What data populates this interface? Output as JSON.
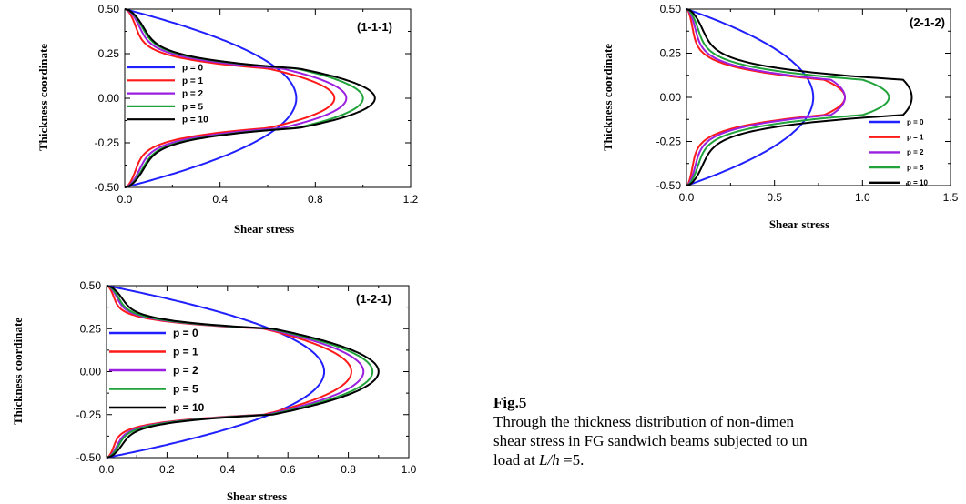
{
  "figure": {
    "caption_label": "Fig.5",
    "caption_line1": "Through the thickness distribution of non-dimen",
    "caption_line2": "shear stress in FG sandwich beams subjected to un",
    "caption_line3_prefix": "load at ",
    "caption_line3_italic": "L/h",
    "caption_line3_suffix": " =5."
  },
  "colors": {
    "p = 0": "#2020ff",
    "p = 1": "#ff1a1a",
    "p = 2": "#9b1fe0",
    "p = 5": "#1fa33a",
    "p = 10": "#000000"
  },
  "chart_data": [
    {
      "type": "line",
      "panel_label": "(1-1-1)",
      "xlabel": "Shear stress",
      "ylabel": "Thickness coordinate",
      "xlim": [
        0,
        1.2
      ],
      "ylim": [
        -0.5,
        0.5
      ],
      "xticks": [
        "0.0",
        "0.4",
        "0.8",
        "1.2"
      ],
      "yticks": [
        "-0.50",
        "-0.25",
        "0.00",
        "0.25",
        "0.50"
      ],
      "legend_position": "left",
      "series": [
        {
          "name": "p = 0",
          "core": [
            -0.5,
            0.5
          ],
          "peak": 0.72,
          "skin": [
            0.0,
            0.0
          ]
        },
        {
          "name": "p = 1",
          "core": [
            -0.1667,
            0.1667
          ],
          "peak": 0.88,
          "skin": [
            0.09,
            0.6
          ]
        },
        {
          "name": "p = 2",
          "core": [
            -0.1667,
            0.1667
          ],
          "peak": 0.93,
          "skin": [
            0.12,
            0.66
          ]
        },
        {
          "name": "p = 5",
          "core": [
            -0.1667,
            0.1667
          ],
          "peak": 1.0,
          "skin": [
            0.14,
            0.72
          ]
        },
        {
          "name": "p = 10",
          "core": [
            -0.1667,
            0.1667
          ],
          "peak": 1.05,
          "skin": [
            0.15,
            0.73
          ]
        }
      ]
    },
    {
      "type": "line",
      "panel_label": "(2-1-2)",
      "xlabel": "Shear stress",
      "ylabel": "Thickness coordinate",
      "xlim": [
        0,
        1.5
      ],
      "ylim": [
        -0.5,
        0.5
      ],
      "xticks": [
        "0.0",
        "0.5",
        "1.0",
        "1.5"
      ],
      "yticks": [
        "-0.50",
        "-0.25",
        "0.00",
        "0.25",
        "0.50"
      ],
      "legend_position": "bottom-right",
      "series": [
        {
          "name": "p = 0",
          "core": [
            -0.5,
            0.5
          ],
          "peak": 0.72,
          "skin": [
            0.0,
            0.0
          ]
        },
        {
          "name": "p = 1",
          "core": [
            -0.1,
            0.1
          ],
          "peak": 0.9,
          "skin": [
            0.07,
            0.78
          ]
        },
        {
          "name": "p = 2",
          "core": [
            -0.1,
            0.1
          ],
          "peak": 0.9,
          "skin": [
            0.1,
            0.82
          ]
        },
        {
          "name": "p = 5",
          "core": [
            -0.1,
            0.1
          ],
          "peak": 1.15,
          "skin": [
            0.13,
            1.0
          ]
        },
        {
          "name": "p = 10",
          "core": [
            -0.1,
            0.1
          ],
          "peak": 1.28,
          "skin": [
            0.18,
            1.23
          ]
        }
      ]
    },
    {
      "type": "line",
      "panel_label": "(1-2-1)",
      "xlabel": "Shear stress",
      "ylabel": "Thickness coordinate",
      "xlim": [
        0,
        1.0
      ],
      "ylim": [
        -0.5,
        0.5
      ],
      "xticks": [
        "0.0",
        "0.2",
        "0.4",
        "0.6",
        "0.8",
        "1.0"
      ],
      "yticks": [
        "-0.50",
        "-0.25",
        "0.00",
        "0.25",
        "0.50"
      ],
      "legend_position": "left",
      "series": [
        {
          "name": "p = 0",
          "core": [
            -0.5,
            0.5
          ],
          "peak": 0.72,
          "skin": [
            0.0,
            0.0
          ]
        },
        {
          "name": "p = 1",
          "core": [
            -0.25,
            0.25
          ],
          "peak": 0.81,
          "skin": [
            0.05,
            0.52
          ]
        },
        {
          "name": "p = 2",
          "core": [
            -0.25,
            0.25
          ],
          "peak": 0.85,
          "skin": [
            0.07,
            0.53
          ]
        },
        {
          "name": "p = 5",
          "core": [
            -0.25,
            0.25
          ],
          "peak": 0.88,
          "skin": [
            0.08,
            0.54
          ]
        },
        {
          "name": "p = 10",
          "core": [
            -0.25,
            0.25
          ],
          "peak": 0.9,
          "skin": [
            0.1,
            0.55
          ]
        }
      ]
    }
  ]
}
